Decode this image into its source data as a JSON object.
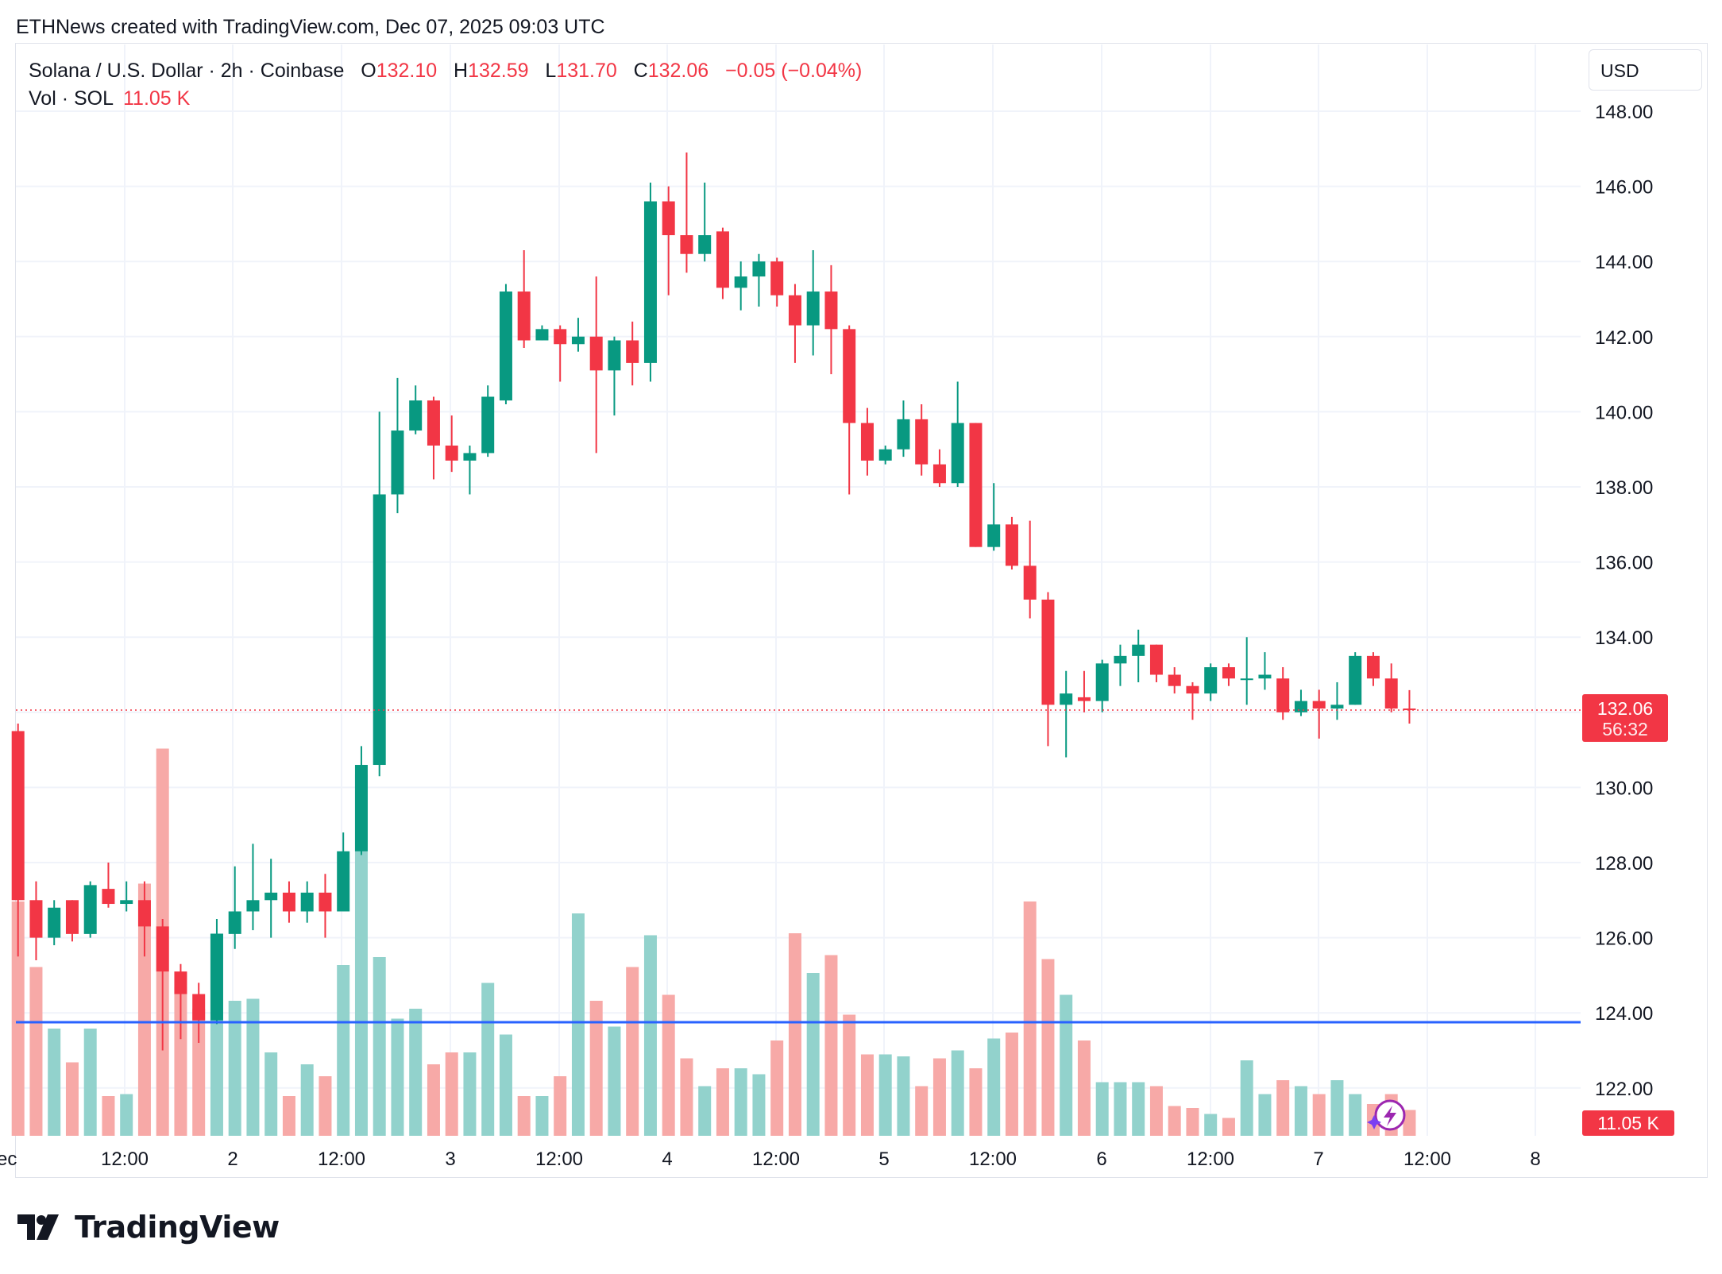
{
  "caption": "ETHNews created with TradingView.com, Dec 07, 2025 09:03 UTC",
  "legend": {
    "symbol": "Solana / U.S. Dollar · 2h · Coinbase",
    "o_label": "O",
    "o_value": "132.10",
    "h_label": "H",
    "h_value": "132.59",
    "l_label": "L",
    "l_value": "131.70",
    "c_label": "C",
    "c_value": "132.06",
    "change": "−0.05 (−0.04%)",
    "vol_label": "Vol · SOL",
    "vol_value": "11.05 K"
  },
  "currency_button": "USD",
  "price_badge": {
    "price": "132.06",
    "countdown": "56:32"
  },
  "volume_badge": "11.05 K",
  "brand": "TradingView",
  "colors": {
    "up": "#089981",
    "down": "#f23645",
    "up_vol": "#92d2cc",
    "down_vol": "#f7a9a7",
    "support_line": "#2962ff",
    "grid": "#f0f3fa"
  },
  "chart_data": {
    "type": "candlestick",
    "title": "Solana / U.S. Dollar · 2h · Coinbase",
    "interval": "2h",
    "y_axis": {
      "ticks": [
        "122.00",
        "124.00",
        "126.00",
        "128.00",
        "130.00",
        "132.00",
        "134.00",
        "136.00",
        "138.00",
        "140.00",
        "142.00",
        "144.00",
        "146.00",
        "148.00"
      ],
      "range": [
        120.6,
        149.4
      ],
      "position": "right"
    },
    "x_axis": {
      "ticks": [
        "Dec",
        "12:00",
        "2",
        "12:00",
        "3",
        "12:00",
        "4",
        "12:00",
        "5",
        "12:00",
        "6",
        "12:00",
        "7",
        "12:00",
        "8"
      ]
    },
    "support_level": 123.75,
    "last_price": 132.06,
    "grid": true,
    "candles": [
      {
        "o": 131.5,
        "h": 131.7,
        "l": 125.5,
        "c": 127.0
      },
      {
        "o": 127.0,
        "h": 127.5,
        "l": 125.4,
        "c": 126.0
      },
      {
        "o": 126.0,
        "h": 127.0,
        "l": 125.8,
        "c": 126.8
      },
      {
        "o": 127.0,
        "h": 127.0,
        "l": 125.9,
        "c": 126.1
      },
      {
        "o": 126.1,
        "h": 127.5,
        "l": 126.0,
        "c": 127.4
      },
      {
        "o": 127.3,
        "h": 128.0,
        "l": 126.8,
        "c": 126.9
      },
      {
        "o": 126.9,
        "h": 127.5,
        "l": 126.7,
        "c": 127.0
      },
      {
        "o": 127.0,
        "h": 127.5,
        "l": 125.5,
        "c": 126.3
      },
      {
        "o": 126.3,
        "h": 126.5,
        "l": 123.0,
        "c": 125.1
      },
      {
        "o": 125.1,
        "h": 125.3,
        "l": 123.3,
        "c": 124.5
      },
      {
        "o": 124.5,
        "h": 124.8,
        "l": 123.2,
        "c": 123.8
      },
      {
        "o": 123.8,
        "h": 126.5,
        "l": 123.7,
        "c": 126.1
      },
      {
        "o": 126.1,
        "h": 127.9,
        "l": 125.7,
        "c": 126.7
      },
      {
        "o": 126.7,
        "h": 128.5,
        "l": 126.2,
        "c": 127.0
      },
      {
        "o": 127.0,
        "h": 128.1,
        "l": 126.0,
        "c": 127.2
      },
      {
        "o": 127.2,
        "h": 127.5,
        "l": 126.4,
        "c": 126.7
      },
      {
        "o": 126.7,
        "h": 127.5,
        "l": 126.4,
        "c": 127.2
      },
      {
        "o": 127.2,
        "h": 127.7,
        "l": 126.0,
        "c": 126.7
      },
      {
        "o": 126.7,
        "h": 128.8,
        "l": 126.7,
        "c": 128.3
      },
      {
        "o": 128.3,
        "h": 131.1,
        "l": 128.2,
        "c": 130.6
      },
      {
        "o": 130.6,
        "h": 140.0,
        "l": 130.3,
        "c": 137.8
      },
      {
        "o": 137.8,
        "h": 140.9,
        "l": 137.3,
        "c": 139.5
      },
      {
        "o": 139.5,
        "h": 140.7,
        "l": 139.4,
        "c": 140.3
      },
      {
        "o": 140.3,
        "h": 140.4,
        "l": 138.2,
        "c": 139.1
      },
      {
        "o": 139.1,
        "h": 139.9,
        "l": 138.4,
        "c": 138.7
      },
      {
        "o": 138.7,
        "h": 139.1,
        "l": 137.8,
        "c": 138.9
      },
      {
        "o": 138.9,
        "h": 140.7,
        "l": 138.8,
        "c": 140.4
      },
      {
        "o": 140.3,
        "h": 143.4,
        "l": 140.2,
        "c": 143.2
      },
      {
        "o": 143.2,
        "h": 144.3,
        "l": 141.7,
        "c": 141.9
      },
      {
        "o": 141.9,
        "h": 142.3,
        "l": 141.9,
        "c": 142.2
      },
      {
        "o": 142.2,
        "h": 142.3,
        "l": 140.8,
        "c": 141.8
      },
      {
        "o": 141.8,
        "h": 142.5,
        "l": 141.6,
        "c": 142.0
      },
      {
        "o": 142.0,
        "h": 143.6,
        "l": 138.9,
        "c": 141.1
      },
      {
        "o": 141.1,
        "h": 142.0,
        "l": 139.9,
        "c": 141.9
      },
      {
        "o": 141.9,
        "h": 142.4,
        "l": 140.7,
        "c": 141.3
      },
      {
        "o": 141.3,
        "h": 146.1,
        "l": 140.8,
        "c": 145.6
      },
      {
        "o": 145.6,
        "h": 146.0,
        "l": 143.1,
        "c": 144.7
      },
      {
        "o": 144.7,
        "h": 146.9,
        "l": 143.7,
        "c": 144.2
      },
      {
        "o": 144.2,
        "h": 146.1,
        "l": 144.0,
        "c": 144.7
      },
      {
        "o": 144.8,
        "h": 144.9,
        "l": 143.0,
        "c": 143.3
      },
      {
        "o": 143.3,
        "h": 144.0,
        "l": 142.7,
        "c": 143.6
      },
      {
        "o": 143.6,
        "h": 144.2,
        "l": 142.8,
        "c": 144.0
      },
      {
        "o": 144.0,
        "h": 144.1,
        "l": 142.8,
        "c": 143.1
      },
      {
        "o": 143.1,
        "h": 143.4,
        "l": 141.3,
        "c": 142.3
      },
      {
        "o": 142.3,
        "h": 144.3,
        "l": 141.5,
        "c": 143.2
      },
      {
        "o": 143.2,
        "h": 143.9,
        "l": 141.0,
        "c": 142.2
      },
      {
        "o": 142.2,
        "h": 142.3,
        "l": 137.8,
        "c": 139.7
      },
      {
        "o": 139.7,
        "h": 140.1,
        "l": 138.3,
        "c": 138.7
      },
      {
        "o": 138.7,
        "h": 139.1,
        "l": 138.6,
        "c": 139.0
      },
      {
        "o": 139.0,
        "h": 140.3,
        "l": 138.8,
        "c": 139.8
      },
      {
        "o": 139.8,
        "h": 140.2,
        "l": 138.3,
        "c": 138.6
      },
      {
        "o": 138.6,
        "h": 139.0,
        "l": 138.0,
        "c": 138.1
      },
      {
        "o": 138.1,
        "h": 140.8,
        "l": 138.0,
        "c": 139.7
      },
      {
        "o": 139.7,
        "h": 139.7,
        "l": 136.4,
        "c": 136.4
      },
      {
        "o": 136.4,
        "h": 138.1,
        "l": 136.3,
        "c": 137.0
      },
      {
        "o": 137.0,
        "h": 137.2,
        "l": 135.8,
        "c": 135.9
      },
      {
        "o": 135.9,
        "h": 137.1,
        "l": 134.5,
        "c": 135.0
      },
      {
        "o": 135.0,
        "h": 135.2,
        "l": 131.1,
        "c": 132.2
      },
      {
        "o": 132.2,
        "h": 133.1,
        "l": 130.8,
        "c": 132.5
      },
      {
        "o": 132.4,
        "h": 133.1,
        "l": 132.0,
        "c": 132.3
      },
      {
        "o": 132.3,
        "h": 133.4,
        "l": 132.0,
        "c": 133.3
      },
      {
        "o": 133.3,
        "h": 133.8,
        "l": 132.7,
        "c": 133.5
      },
      {
        "o": 133.5,
        "h": 134.2,
        "l": 132.8,
        "c": 133.8
      },
      {
        "o": 133.8,
        "h": 133.8,
        "l": 132.8,
        "c": 133.0
      },
      {
        "o": 133.0,
        "h": 133.2,
        "l": 132.5,
        "c": 132.7
      },
      {
        "o": 132.7,
        "h": 132.8,
        "l": 131.8,
        "c": 132.5
      },
      {
        "o": 132.5,
        "h": 133.3,
        "l": 132.3,
        "c": 133.2
      },
      {
        "o": 133.2,
        "h": 133.3,
        "l": 132.7,
        "c": 132.9
      },
      {
        "o": 132.9,
        "h": 134.0,
        "l": 132.2,
        "c": 132.9
      },
      {
        "o": 132.9,
        "h": 133.6,
        "l": 132.6,
        "c": 133.0
      },
      {
        "o": 132.9,
        "h": 133.2,
        "l": 131.8,
        "c": 132.0
      },
      {
        "o": 132.0,
        "h": 132.6,
        "l": 131.9,
        "c": 132.3
      },
      {
        "o": 132.3,
        "h": 132.6,
        "l": 131.3,
        "c": 132.1
      },
      {
        "o": 132.1,
        "h": 132.8,
        "l": 131.8,
        "c": 132.2
      },
      {
        "o": 132.2,
        "h": 133.6,
        "l": 132.2,
        "c": 133.5
      },
      {
        "o": 133.5,
        "h": 133.6,
        "l": 132.7,
        "c": 132.9
      },
      {
        "o": 132.9,
        "h": 133.3,
        "l": 132.0,
        "c": 132.1
      },
      {
        "o": 132.1,
        "h": 132.59,
        "l": 131.7,
        "c": 132.06
      }
    ],
    "volume": [
      1.18,
      0.85,
      0.54,
      0.37,
      0.54,
      0.2,
      0.21,
      1.27,
      1.95,
      0.75,
      0.64,
      1.02,
      0.68,
      0.69,
      0.42,
      0.2,
      0.36,
      0.3,
      0.86,
      1.82,
      0.9,
      0.59,
      0.64,
      0.36,
      0.42,
      0.42,
      0.77,
      0.51,
      0.2,
      0.2,
      0.3,
      1.12,
      0.68,
      0.55,
      0.85,
      1.01,
      0.71,
      0.39,
      0.25,
      0.34,
      0.34,
      0.31,
      0.48,
      1.02,
      0.82,
      0.91,
      0.61,
      0.41,
      0.41,
      0.4,
      0.25,
      0.39,
      0.43,
      0.34,
      0.49,
      0.52,
      1.18,
      0.89,
      0.71,
      0.48,
      0.27,
      0.27,
      0.27,
      0.25,
      0.15,
      0.14,
      0.11,
      0.09,
      0.38,
      0.21,
      0.28,
      0.25,
      0.21,
      0.28,
      0.21,
      0.16,
      0.21,
      0.13
    ]
  }
}
